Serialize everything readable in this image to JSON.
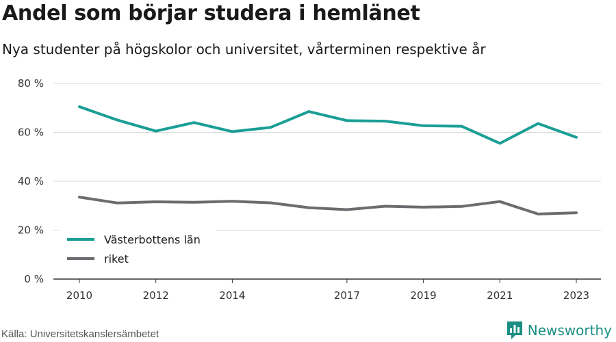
{
  "header": {
    "title": "Andel som börjar studera i hemlänet",
    "subtitle": "Nya studenter på högskolor och universitet, vårterminen respektive år"
  },
  "footer": {
    "source": "Källa: Universitetskanslersämbetet",
    "brand": "Newsworthy",
    "brand_icon": "bar-chart-logo-icon"
  },
  "colors": {
    "series_1": "#1a9e95",
    "series_2": "#6b6b70",
    "grid": "#d9d9d9",
    "axis": "#333333"
  },
  "chart_data": {
    "type": "line",
    "x": [
      2010,
      2011,
      2012,
      2013,
      2014,
      2015,
      2016,
      2017,
      2018,
      2019,
      2020,
      2021,
      2022,
      2023
    ],
    "x_tick_labels": [
      "2010",
      "2012",
      "2014",
      "2017",
      "2019",
      "2021",
      "2023"
    ],
    "x_ticks": [
      2010,
      2012,
      2014,
      2017,
      2019,
      2021,
      2023
    ],
    "y_tick_labels": [
      "0 %",
      "20 %",
      "40 %",
      "60 %",
      "80 %"
    ],
    "y_ticks": [
      0,
      20,
      40,
      60,
      80
    ],
    "xlim": [
      2010,
      2023
    ],
    "ylim": [
      0,
      80
    ],
    "grid": true,
    "legend_position": "bottom-left",
    "series": [
      {
        "name": "Västerbottens län",
        "values": [
          70.5,
          65.0,
          60.5,
          64.0,
          60.3,
          62.0,
          68.5,
          64.8,
          64.6,
          62.7,
          62.5,
          55.5,
          63.6,
          58.0
        ]
      },
      {
        "name": "riket",
        "values": [
          33.5,
          31.1,
          31.6,
          31.4,
          31.8,
          31.2,
          29.2,
          28.4,
          29.8,
          29.4,
          29.7,
          31.7,
          26.6,
          27.1
        ]
      }
    ]
  }
}
